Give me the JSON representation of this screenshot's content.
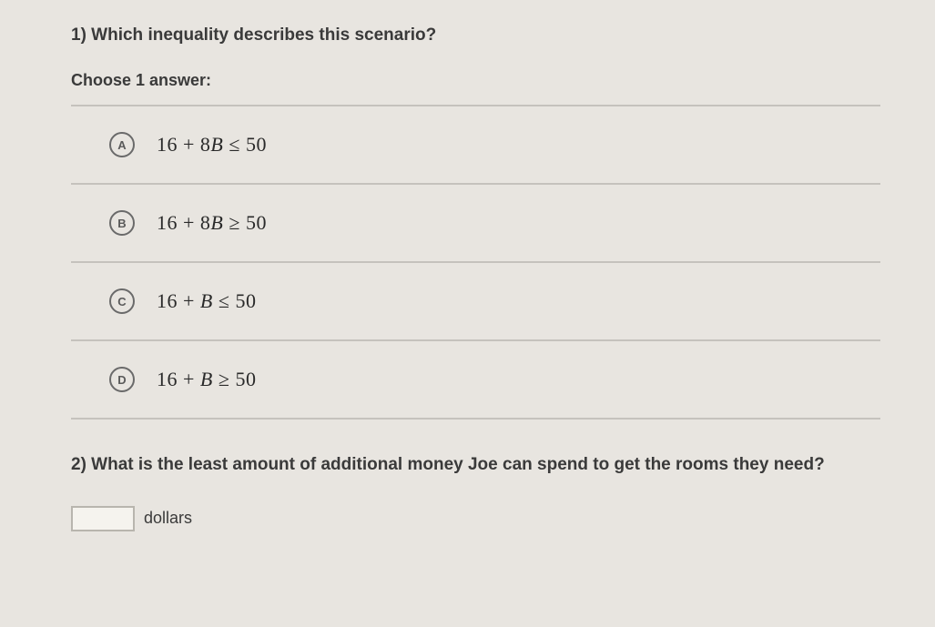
{
  "q1": {
    "prompt": "1) Which inequality describes this scenario?",
    "choose_label": "Choose 1 answer:",
    "choices": [
      {
        "letter": "A",
        "lhs_a": "16",
        "lhs_b": "8",
        "var": "B",
        "op": "≤",
        "rhs": "50"
      },
      {
        "letter": "B",
        "lhs_a": "16",
        "lhs_b": "8",
        "var": "B",
        "op": "≥",
        "rhs": "50"
      },
      {
        "letter": "C",
        "lhs_a": "16",
        "lhs_b": "",
        "var": "B",
        "op": "≤",
        "rhs": "50"
      },
      {
        "letter": "D",
        "lhs_a": "16",
        "lhs_b": "",
        "var": "B",
        "op": "≥",
        "rhs": "50"
      }
    ]
  },
  "q2": {
    "prompt": "2) What is the least amount of additional money Joe can spend to get the rooms they need?",
    "unit": "dollars"
  },
  "style": {
    "background_color": "#e8e5e0",
    "text_color": "#3a3a3a",
    "divider_color": "#c5c2bd",
    "circle_border_color": "#6a6a6a",
    "input_border_color": "#b8b5ae",
    "prompt_fontsize": 19,
    "math_fontsize": 22,
    "math_font": "Times New Roman"
  }
}
